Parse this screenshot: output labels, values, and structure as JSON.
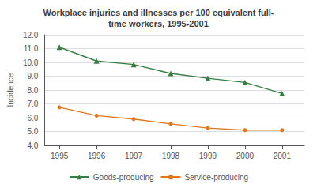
{
  "chart_data": {
    "type": "line",
    "title": "Workplace injuries and illnesses per 100 equivalent full-\ntime workers, 1995-2001",
    "x": [
      1995,
      1996,
      1997,
      1998,
      1999,
      2000,
      2001
    ],
    "xlim": [
      1994.6,
      2001.6
    ],
    "xticks": [
      1995,
      1996,
      1997,
      1998,
      1999,
      2000,
      2001
    ],
    "ylim": [
      4.0,
      12.0
    ],
    "yticks": [
      {
        "value": 4,
        "label": "4.0"
      },
      {
        "value": 5,
        "label": "5.0"
      },
      {
        "value": 6,
        "label": "6.0"
      },
      {
        "value": 7,
        "label": "7.0"
      },
      {
        "value": 8,
        "label": "8.0"
      },
      {
        "value": 9,
        "label": "9.0"
      },
      {
        "value": 10,
        "label": "10.0"
      },
      {
        "value": 11,
        "label": "11.0"
      },
      {
        "value": 12,
        "label": "12.0"
      }
    ],
    "ylabel": "Incidence",
    "grid": true,
    "legend": "bottom",
    "series": [
      {
        "name": "Goods-producing",
        "color": "#3a7d44",
        "marker": "triangle",
        "values": [
          11.1,
          10.1,
          9.85,
          9.2,
          8.85,
          8.55,
          7.75
        ]
      },
      {
        "name": "Service-producing",
        "color": "#e07820",
        "marker": "circle",
        "values": [
          6.75,
          6.15,
          5.9,
          5.55,
          5.25,
          5.1,
          5.1
        ]
      }
    ]
  }
}
